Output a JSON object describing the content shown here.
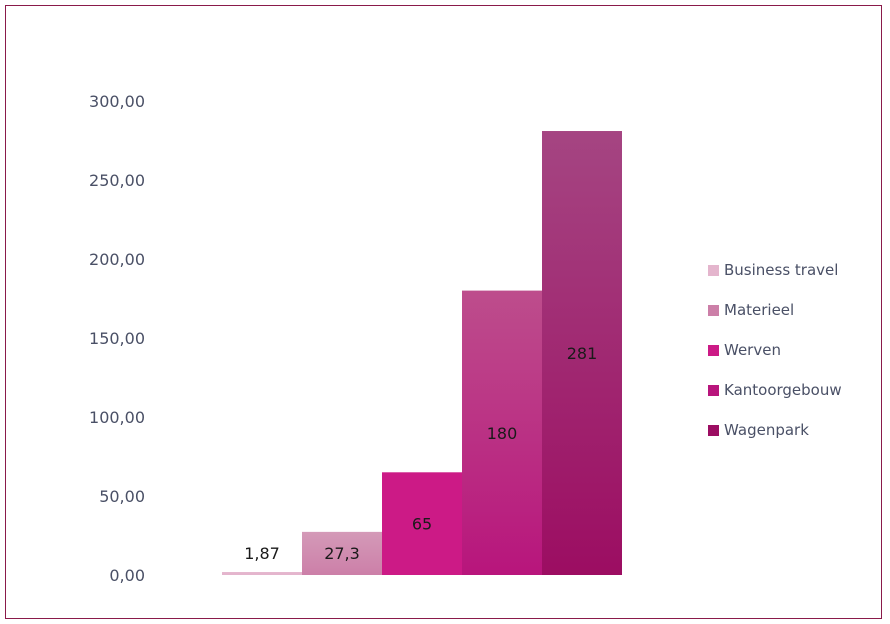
{
  "chart_data": {
    "type": "bar",
    "categories": [
      "Business travel",
      "Materieel",
      "Werven",
      "Kantoorgebouw",
      "Wagenpark"
    ],
    "values": [
      1.87,
      27.3,
      65,
      180,
      281
    ],
    "data_labels": [
      "1,87",
      "27,3",
      "65",
      "180",
      "281"
    ],
    "ylim": [
      0,
      300
    ],
    "y_ticks": [
      0,
      50,
      100,
      150,
      200,
      250,
      300
    ],
    "y_tick_labels": [
      "0,00",
      "50,00",
      "100,00",
      "150,00",
      "200,00",
      "250,00",
      "300,00"
    ],
    "grid": false,
    "legend_position": "right",
    "colors": [
      "#e4b5cd",
      "#cc7fa8",
      "#cc1a86",
      "#b8157c",
      "#9c0d62"
    ],
    "colors_top": [
      "#e4b5cd",
      "#d49ab8",
      "#cc1a86",
      "#bd4d8c",
      "#a54582"
    ],
    "title": "",
    "xlabel": "",
    "ylabel": ""
  }
}
